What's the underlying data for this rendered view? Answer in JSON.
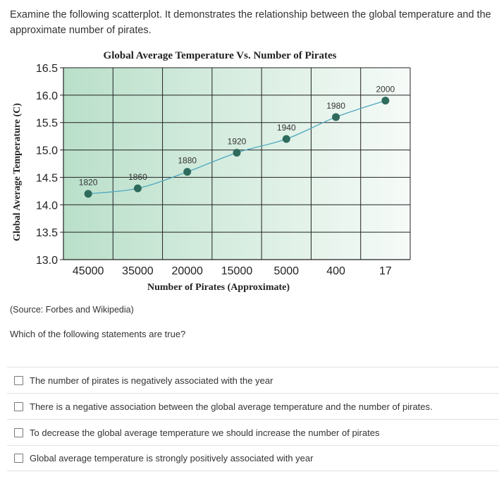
{
  "intro": "Examine the following scatterplot.  It demonstrates the relationship between the global temperature and the approximate number of pirates.",
  "source": "(Source: Forbes and Wikipedia)",
  "question": "Which of the following statements are true?",
  "options": [
    "The number of pirates is negatively associated with the year",
    "There is a negative association between the global average temperature and the number of pirates.",
    "To decrease the global average temperature we should increase the number of pirates",
    "Global average temperature is strongly positively associated with year"
  ],
  "colors": {
    "point": "#2e6b5c",
    "curve": "#4fa8bf",
    "gradient_left": "#b9dfc9",
    "gradient_right": "#f6fbf8"
  },
  "chart_data": {
    "type": "scatter",
    "title": "Global Average Temperature Vs. Number of Pirates",
    "xlabel": "Number of Pirates (Approximate)",
    "ylabel": "Global Average Temperature (C)",
    "categories": [
      "45000",
      "35000",
      "20000",
      "15000",
      "5000",
      "400",
      "17"
    ],
    "yticks": [
      "16.5",
      "16.0",
      "15.5",
      "15.0",
      "14.5",
      "14.0",
      "13.5",
      "13.0"
    ],
    "ylim": [
      13.0,
      16.5
    ],
    "grid": true,
    "points": [
      {
        "pirates": "45000",
        "temperature": 14.2,
        "label": "1820"
      },
      {
        "pirates": "35000",
        "temperature": 14.3,
        "label": "1860"
      },
      {
        "pirates": "20000",
        "temperature": 14.6,
        "label": "1880"
      },
      {
        "pirates": "15000",
        "temperature": 14.95,
        "label": "1920"
      },
      {
        "pirates": "5000",
        "temperature": 15.2,
        "label": "1940"
      },
      {
        "pirates": "400",
        "temperature": 15.6,
        "label": "1980"
      },
      {
        "pirates": "17",
        "temperature": 15.9,
        "label": "2000"
      }
    ]
  }
}
